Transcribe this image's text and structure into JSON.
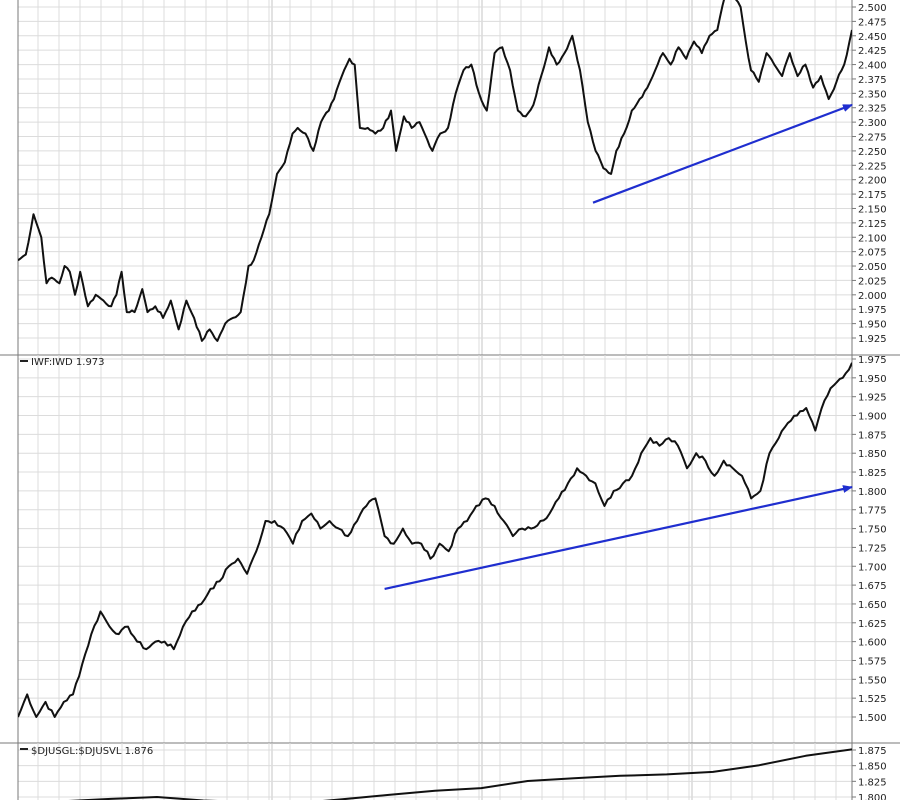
{
  "colors": {
    "background": "#ffffff",
    "grid": "#dcdcdc",
    "border": "#7a7a7a",
    "price_line": "#111111",
    "trend_arrow": "#1f2ecf"
  },
  "chart_data": [
    {
      "type": "line",
      "panel": "top",
      "title": "",
      "ylim": [
        1.9,
        2.525
      ],
      "y_ticks": [
        "2.500",
        "2.475",
        "2.450",
        "2.425",
        "2.400",
        "2.375",
        "2.350",
        "2.325",
        "2.300",
        "2.275",
        "2.250",
        "2.225",
        "2.200",
        "2.175",
        "2.150",
        "2.125",
        "2.100",
        "2.075",
        "2.050",
        "2.025",
        "2.000",
        "1.975",
        "1.950",
        "1.925"
      ],
      "anchors": [
        [
          0,
          2.06
        ],
        [
          3,
          2.07
        ],
        [
          6,
          2.14
        ],
        [
          9,
          2.1
        ],
        [
          11,
          2.02
        ],
        [
          13,
          2.03
        ],
        [
          16,
          2.02
        ],
        [
          18,
          2.05
        ],
        [
          20,
          2.04
        ],
        [
          22,
          2.0
        ],
        [
          24,
          2.04
        ],
        [
          27,
          1.98
        ],
        [
          30,
          2.0
        ],
        [
          33,
          1.99
        ],
        [
          36,
          1.98
        ],
        [
          38,
          2.0
        ],
        [
          40,
          2.04
        ],
        [
          42,
          1.97
        ],
        [
          45,
          1.97
        ],
        [
          48,
          2.01
        ],
        [
          50,
          1.97
        ],
        [
          53,
          1.98
        ],
        [
          56,
          1.96
        ],
        [
          59,
          1.99
        ],
        [
          62,
          1.94
        ],
        [
          65,
          1.99
        ],
        [
          68,
          1.96
        ],
        [
          71,
          1.92
        ],
        [
          74,
          1.94
        ],
        [
          77,
          1.92
        ],
        [
          80,
          1.95
        ],
        [
          83,
          1.96
        ],
        [
          86,
          1.97
        ],
        [
          89,
          2.05
        ],
        [
          91,
          2.06
        ],
        [
          94,
          2.1
        ],
        [
          97,
          2.14
        ],
        [
          100,
          2.21
        ],
        [
          103,
          2.23
        ],
        [
          106,
          2.28
        ],
        [
          108,
          2.29
        ],
        [
          111,
          2.28
        ],
        [
          114,
          2.25
        ],
        [
          117,
          2.3
        ],
        [
          120,
          2.32
        ],
        [
          122,
          2.34
        ],
        [
          125,
          2.38
        ],
        [
          128,
          2.41
        ],
        [
          130,
          2.4
        ],
        [
          132,
          2.29
        ],
        [
          135,
          2.29
        ],
        [
          138,
          2.28
        ],
        [
          141,
          2.29
        ],
        [
          144,
          2.32
        ],
        [
          146,
          2.25
        ],
        [
          149,
          2.31
        ],
        [
          152,
          2.29
        ],
        [
          155,
          2.3
        ],
        [
          157,
          2.28
        ],
        [
          160,
          2.25
        ],
        [
          163,
          2.28
        ],
        [
          166,
          2.29
        ],
        [
          169,
          2.35
        ],
        [
          172,
          2.39
        ],
        [
          175,
          2.4
        ],
        [
          178,
          2.35
        ],
        [
          181,
          2.32
        ],
        [
          184,
          2.42
        ],
        [
          187,
          2.43
        ],
        [
          190,
          2.39
        ],
        [
          193,
          2.32
        ],
        [
          196,
          2.31
        ],
        [
          199,
          2.33
        ],
        [
          202,
          2.38
        ],
        [
          205,
          2.43
        ],
        [
          208,
          2.4
        ],
        [
          211,
          2.42
        ],
        [
          214,
          2.45
        ],
        [
          217,
          2.39
        ],
        [
          220,
          2.3
        ],
        [
          223,
          2.25
        ],
        [
          226,
          2.22
        ],
        [
          229,
          2.21
        ],
        [
          231,
          2.25
        ],
        [
          234,
          2.28
        ],
        [
          237,
          2.32
        ],
        [
          240,
          2.34
        ],
        [
          243,
          2.36
        ],
        [
          246,
          2.39
        ],
        [
          249,
          2.42
        ],
        [
          252,
          2.4
        ],
        [
          255,
          2.43
        ],
        [
          258,
          2.41
        ],
        [
          261,
          2.44
        ],
        [
          264,
          2.42
        ],
        [
          267,
          2.45
        ],
        [
          270,
          2.46
        ],
        [
          273,
          2.52
        ],
        [
          276,
          2.52
        ],
        [
          279,
          2.5
        ],
        [
          281,
          2.44
        ],
        [
          283,
          2.39
        ],
        [
          286,
          2.37
        ],
        [
          289,
          2.42
        ],
        [
          292,
          2.4
        ],
        [
          295,
          2.38
        ],
        [
          298,
          2.42
        ],
        [
          301,
          2.38
        ],
        [
          304,
          2.4
        ],
        [
          307,
          2.36
        ],
        [
          310,
          2.38
        ],
        [
          313,
          2.34
        ],
        [
          316,
          2.37
        ],
        [
          319,
          2.4
        ],
        [
          322,
          2.46
        ]
      ],
      "trend_arrow": {
        "from": [
          222,
          2.16
        ],
        "to": [
          322,
          2.33
        ]
      }
    },
    {
      "type": "line",
      "panel": "middle",
      "title": "IWF:IWD 1.973",
      "ylim": [
        1.5,
        1.98
      ],
      "y_ticks": [
        "1.975",
        "1.950",
        "1.925",
        "1.900",
        "1.875",
        "1.850",
        "1.825",
        "1.800",
        "1.775",
        "1.750",
        "1.725",
        "1.700",
        "1.675",
        "1.650",
        "1.625",
        "1.600",
        "1.575",
        "1.550",
        "1.525",
        "1.500"
      ],
      "anchors": [
        [
          0,
          1.5
        ],
        [
          3,
          1.53
        ],
        [
          6,
          1.5
        ],
        [
          9,
          1.52
        ],
        [
          12,
          1.5
        ],
        [
          15,
          1.52
        ],
        [
          18,
          1.53
        ],
        [
          21,
          1.57
        ],
        [
          24,
          1.61
        ],
        [
          27,
          1.64
        ],
        [
          30,
          1.62
        ],
        [
          33,
          1.61
        ],
        [
          36,
          1.62
        ],
        [
          39,
          1.6
        ],
        [
          42,
          1.59
        ],
        [
          45,
          1.6
        ],
        [
          48,
          1.6
        ],
        [
          51,
          1.59
        ],
        [
          54,
          1.62
        ],
        [
          57,
          1.64
        ],
        [
          60,
          1.65
        ],
        [
          63,
          1.67
        ],
        [
          66,
          1.68
        ],
        [
          69,
          1.7
        ],
        [
          72,
          1.71
        ],
        [
          75,
          1.69
        ],
        [
          78,
          1.72
        ],
        [
          81,
          1.76
        ],
        [
          84,
          1.76
        ],
        [
          87,
          1.75
        ],
        [
          90,
          1.73
        ],
        [
          93,
          1.76
        ],
        [
          96,
          1.77
        ],
        [
          99,
          1.75
        ],
        [
          102,
          1.76
        ],
        [
          105,
          1.75
        ],
        [
          108,
          1.74
        ],
        [
          111,
          1.76
        ],
        [
          114,
          1.78
        ],
        [
          117,
          1.79
        ],
        [
          120,
          1.74
        ],
        [
          123,
          1.73
        ],
        [
          126,
          1.75
        ],
        [
          129,
          1.73
        ],
        [
          132,
          1.73
        ],
        [
          135,
          1.71
        ],
        [
          138,
          1.73
        ],
        [
          141,
          1.72
        ],
        [
          144,
          1.75
        ],
        [
          147,
          1.76
        ],
        [
          150,
          1.78
        ],
        [
          153,
          1.79
        ],
        [
          156,
          1.78
        ],
        [
          159,
          1.76
        ],
        [
          162,
          1.74
        ],
        [
          165,
          1.75
        ],
        [
          168,
          1.75
        ],
        [
          171,
          1.76
        ],
        [
          174,
          1.77
        ],
        [
          177,
          1.79
        ],
        [
          180,
          1.81
        ],
        [
          183,
          1.83
        ],
        [
          186,
          1.82
        ],
        [
          189,
          1.81
        ],
        [
          192,
          1.78
        ],
        [
          195,
          1.8
        ],
        [
          198,
          1.81
        ],
        [
          201,
          1.82
        ],
        [
          204,
          1.85
        ],
        [
          207,
          1.87
        ],
        [
          210,
          1.86
        ],
        [
          213,
          1.87
        ],
        [
          216,
          1.86
        ],
        [
          219,
          1.83
        ],
        [
          222,
          1.85
        ],
        [
          225,
          1.84
        ],
        [
          228,
          1.82
        ],
        [
          231,
          1.84
        ],
        [
          234,
          1.83
        ],
        [
          237,
          1.82
        ],
        [
          240,
          1.79
        ],
        [
          243,
          1.8
        ],
        [
          246,
          1.85
        ],
        [
          249,
          1.87
        ],
        [
          252,
          1.89
        ],
        [
          255,
          1.9
        ],
        [
          258,
          1.91
        ],
        [
          261,
          1.88
        ],
        [
          264,
          1.92
        ],
        [
          267,
          1.94
        ],
        [
          270,
          1.95
        ],
        [
          273,
          1.97
        ]
      ],
      "trend_arrow": {
        "from": [
          120,
          1.67
        ],
        "to": [
          273,
          1.805
        ]
      }
    },
    {
      "type": "line",
      "panel": "bottom",
      "title": "$DJUSGL:$DJUSVL 1.876",
      "ylim": [
        1.79,
        1.88
      ],
      "y_ticks": [
        "1.875",
        "1.850",
        "1.825",
        "1.800"
      ],
      "anchors": [
        [
          0,
          1.79
        ],
        [
          3,
          1.8
        ],
        [
          6,
          1.79
        ],
        [
          9,
          1.81
        ],
        [
          12,
          1.83
        ],
        [
          15,
          1.84
        ],
        [
          18,
          1.876
        ]
      ]
    }
  ]
}
